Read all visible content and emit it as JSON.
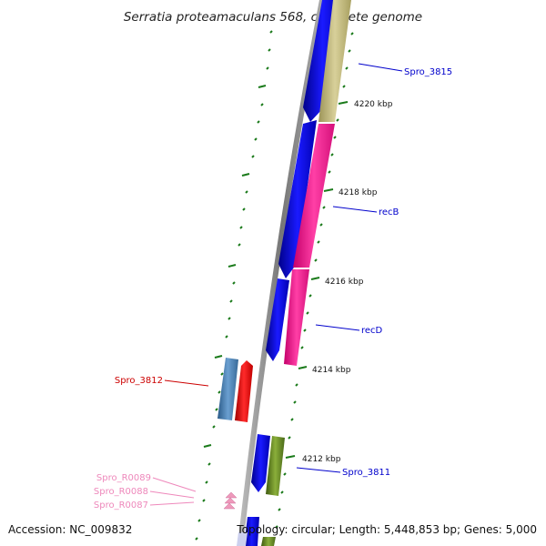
{
  "title": "Serratia proteamaculans 568, complete genome",
  "footer": {
    "accession": "Accession: NC_009832",
    "topology": "Topology: circular; Length: 5,448,853 bp; Genes: 5,000"
  },
  "ticks": {
    "t4220": "4220 kbp",
    "t4218": "4218 kbp",
    "t4216": "4216 kbp",
    "t4214": "4214 kbp",
    "t4212": "4212 kbp"
  },
  "genes": {
    "spro_3815": "Spro_3815",
    "recB": "recB",
    "recD": "recD",
    "spro_3812": "Spro_3812",
    "spro_3811": "Spro_3811",
    "spro_r0089": "Spro_R0089",
    "spro_r0088": "Spro_R0088",
    "spro_r0087": "Spro_R0087"
  },
  "colors": {
    "forward_strand": "#0000e6",
    "reverse_strand": "#ff1493",
    "spro_3815_reverse": "#c8c080",
    "spro_3812_a": "#4a85b8",
    "spro_3812_b": "#ff0000",
    "spro_3811_reverse": "#6b8e23",
    "rna": "#ee99bb",
    "backbone": "#888888",
    "tick": "#1a7a1a",
    "label_blue": "#0000cc",
    "label_red": "#cc0000",
    "label_pink": "#ee88bb"
  }
}
